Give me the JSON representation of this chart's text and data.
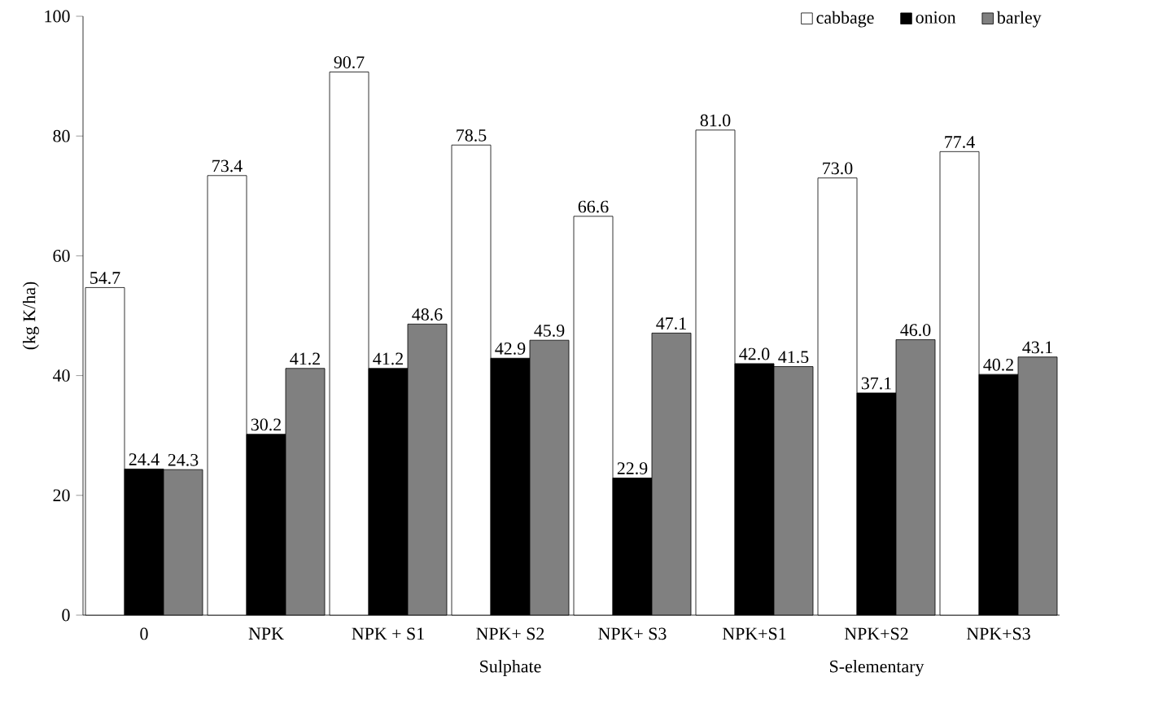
{
  "chart_data": {
    "type": "bar",
    "ylabel": "(kg K/ha)",
    "categories": [
      "0",
      "NPK",
      "NPK + S1",
      "NPK+ S2",
      "NPK+ S3",
      "NPK+S1",
      "NPK+S2",
      "NPK+S3"
    ],
    "series": [
      {
        "name": "cabbage",
        "color": "#ffffff",
        "values": [
          54.7,
          73.4,
          90.7,
          78.5,
          66.6,
          81.0,
          73.0,
          77.4
        ],
        "value_labels": [
          "54.7",
          "73.4",
          "90.7",
          "78.5",
          "66.6",
          "81.0",
          "73.0",
          "77.4"
        ]
      },
      {
        "name": "onion",
        "color": "#000000",
        "values": [
          24.4,
          30.2,
          41.2,
          42.9,
          22.9,
          42.0,
          37.1,
          40.2
        ],
        "value_labels": [
          "24.4",
          "30.2",
          "41.2",
          "42.9",
          "22.9",
          "42.0",
          "37.1",
          "40.2"
        ]
      },
      {
        "name": "barley",
        "color": "#808080",
        "values": [
          24.3,
          41.2,
          48.6,
          45.9,
          47.1,
          41.5,
          46.0,
          43.1
        ],
        "value_labels": [
          "24.3",
          "41.2",
          "48.6",
          "45.9",
          "47.1",
          "41.5",
          "46.0",
          "43.1"
        ]
      }
    ],
    "ylim": [
      0,
      100
    ],
    "yticks": [
      0,
      20,
      40,
      60,
      80,
      100
    ],
    "legend": "top right",
    "annotations": [
      "Sulphate",
      "S-elementary"
    ]
  }
}
